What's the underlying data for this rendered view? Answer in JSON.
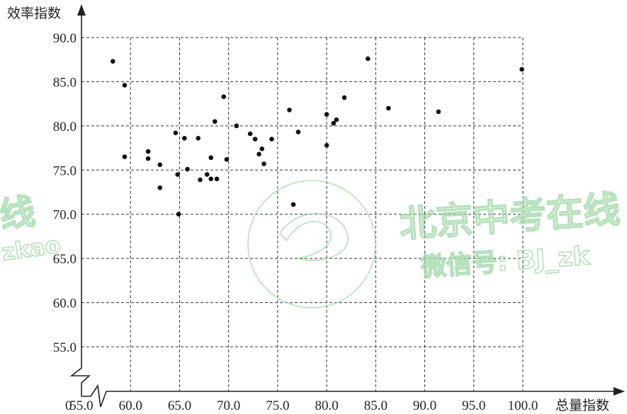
{
  "chart_data": {
    "type": "scatter",
    "xlabel": "总量指数",
    "ylabel": "效率指数",
    "origin_label": "0",
    "xlim": [
      55,
      100
    ],
    "ylim": [
      55,
      90
    ],
    "x_ticks": [
      55,
      60,
      65,
      70,
      75,
      80,
      85,
      90,
      95,
      100
    ],
    "x_tick_labels": [
      "55.0",
      "60.0",
      "65.0",
      "70.0",
      "75.0",
      "80.0",
      "85.0",
      "90.0",
      "95.0",
      "100.0"
    ],
    "y_ticks": [
      55,
      60,
      65,
      70,
      75,
      80,
      85,
      90
    ],
    "y_tick_labels": [
      "55.0",
      "60.0",
      "65.0",
      "70.0",
      "75.0",
      "80.0",
      "85.0",
      "90.0"
    ],
    "grid": true,
    "axis_break": true,
    "points": [
      {
        "x": 58.2,
        "y": 87.3
      },
      {
        "x": 59.4,
        "y": 84.6
      },
      {
        "x": 59.4,
        "y": 76.5
      },
      {
        "x": 61.8,
        "y": 77.1
      },
      {
        "x": 61.8,
        "y": 76.3
      },
      {
        "x": 63.0,
        "y": 75.6
      },
      {
        "x": 63.0,
        "y": 73.0
      },
      {
        "x": 64.6,
        "y": 79.2
      },
      {
        "x": 64.8,
        "y": 74.5
      },
      {
        "x": 64.9,
        "y": 70.0
      },
      {
        "x": 65.5,
        "y": 78.6
      },
      {
        "x": 65.8,
        "y": 75.1
      },
      {
        "x": 66.9,
        "y": 78.6
      },
      {
        "x": 67.1,
        "y": 73.9
      },
      {
        "x": 67.8,
        "y": 74.5
      },
      {
        "x": 68.2,
        "y": 76.4
      },
      {
        "x": 68.2,
        "y": 74.0
      },
      {
        "x": 68.6,
        "y": 80.5
      },
      {
        "x": 68.8,
        "y": 74.0
      },
      {
        "x": 69.5,
        "y": 83.3
      },
      {
        "x": 69.8,
        "y": 76.2
      },
      {
        "x": 70.8,
        "y": 80.0
      },
      {
        "x": 72.2,
        "y": 79.1
      },
      {
        "x": 72.7,
        "y": 78.5
      },
      {
        "x": 73.1,
        "y": 76.8
      },
      {
        "x": 73.4,
        "y": 77.4
      },
      {
        "x": 73.6,
        "y": 75.7
      },
      {
        "x": 74.4,
        "y": 78.5
      },
      {
        "x": 76.2,
        "y": 81.8
      },
      {
        "x": 76.6,
        "y": 71.1
      },
      {
        "x": 77.1,
        "y": 79.3
      },
      {
        "x": 80.0,
        "y": 81.3
      },
      {
        "x": 80.0,
        "y": 77.8
      },
      {
        "x": 80.7,
        "y": 80.3
      },
      {
        "x": 81.0,
        "y": 80.7
      },
      {
        "x": 81.8,
        "y": 83.2
      },
      {
        "x": 84.2,
        "y": 87.6
      },
      {
        "x": 86.3,
        "y": 82.0
      },
      {
        "x": 91.4,
        "y": 81.6
      },
      {
        "x": 99.9,
        "y": 86.4
      }
    ]
  },
  "watermark": {
    "brand_text": "北京中考在线",
    "wechat_text": "微信号: BJ_zk",
    "left_fragment_1": "线",
    "left_fragment_2": "zkao",
    "color": "#9ed8a6"
  },
  "colors": {
    "axis": "#222222",
    "grid": "#333333",
    "point": "#111111"
  }
}
